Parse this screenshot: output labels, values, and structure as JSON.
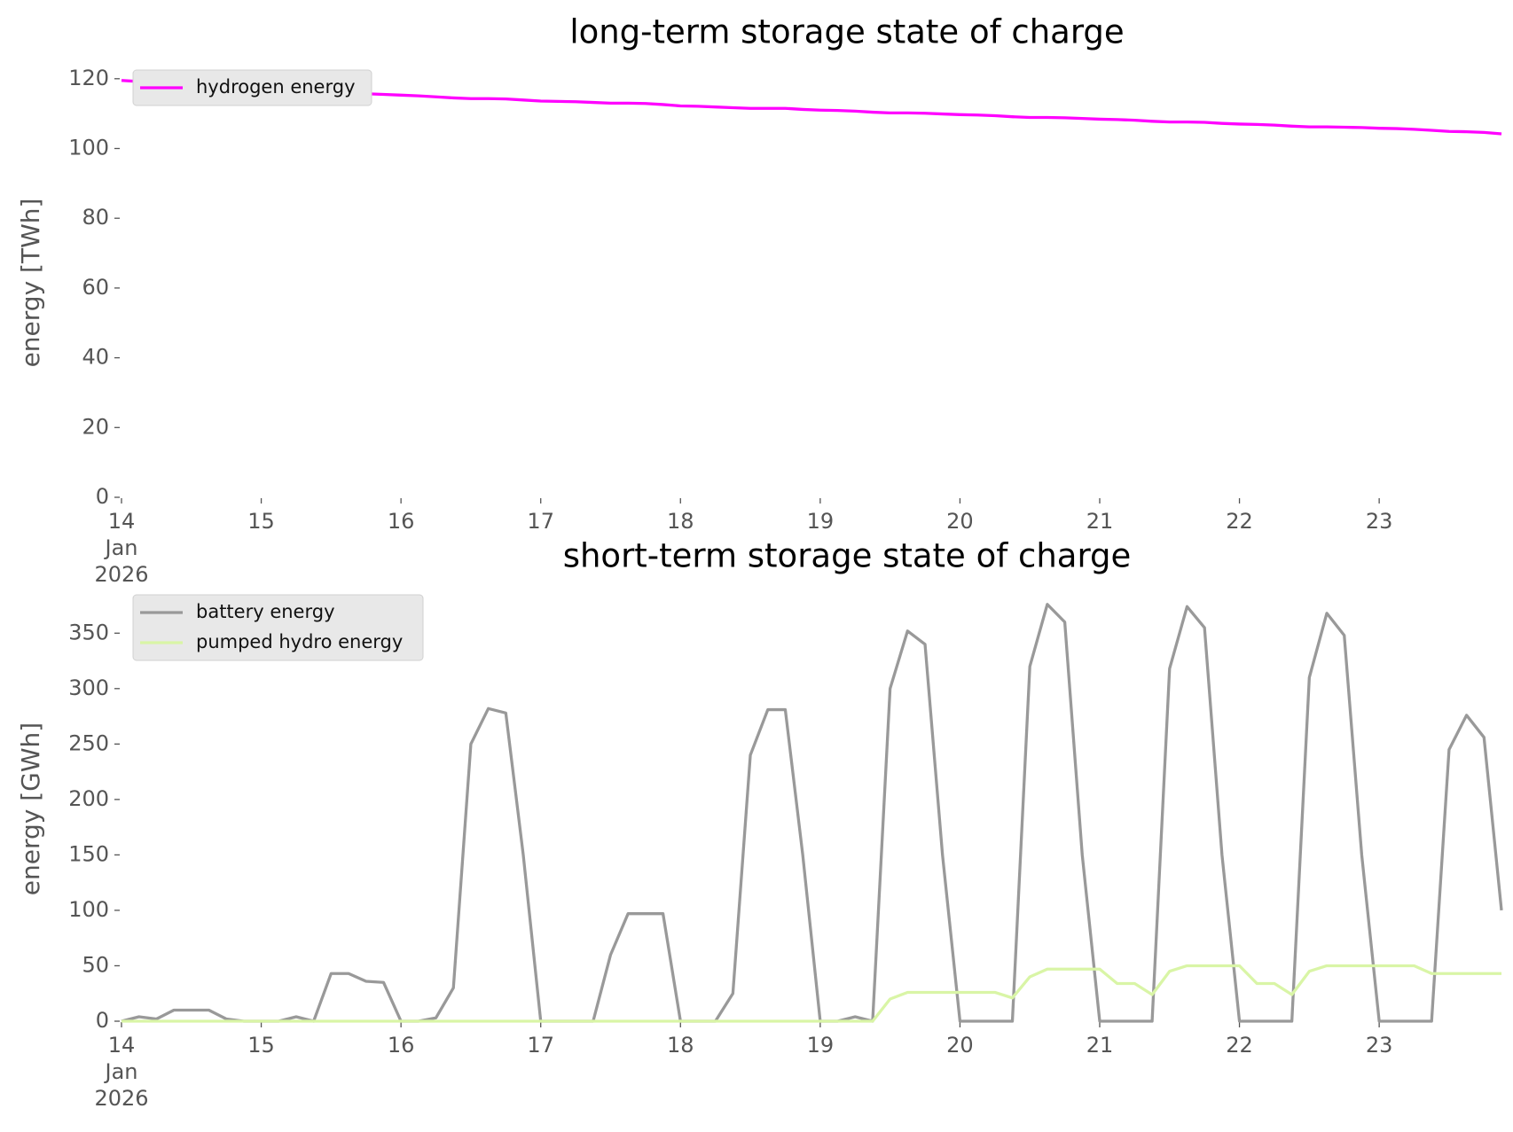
{
  "chart_data": [
    {
      "type": "line",
      "title": "long-term storage state of charge",
      "y_label": "energy [TWh]",
      "x": [
        "2026-01-14T00:00",
        "2026-01-14T03:00",
        "2026-01-14T06:00",
        "2026-01-14T09:00",
        "2026-01-14T12:00",
        "2026-01-14T15:00",
        "2026-01-14T18:00",
        "2026-01-14T21:00",
        "2026-01-15T00:00",
        "2026-01-15T03:00",
        "2026-01-15T06:00",
        "2026-01-15T09:00",
        "2026-01-15T12:00",
        "2026-01-15T15:00",
        "2026-01-15T18:00",
        "2026-01-15T21:00",
        "2026-01-16T00:00",
        "2026-01-16T03:00",
        "2026-01-16T06:00",
        "2026-01-16T09:00",
        "2026-01-16T12:00",
        "2026-01-16T15:00",
        "2026-01-16T18:00",
        "2026-01-16T21:00",
        "2026-01-17T00:00",
        "2026-01-17T03:00",
        "2026-01-17T06:00",
        "2026-01-17T09:00",
        "2026-01-17T12:00",
        "2026-01-17T15:00",
        "2026-01-17T18:00",
        "2026-01-17T21:00",
        "2026-01-18T00:00",
        "2026-01-18T03:00",
        "2026-01-18T06:00",
        "2026-01-18T09:00",
        "2026-01-18T12:00",
        "2026-01-18T15:00",
        "2026-01-18T18:00",
        "2026-01-18T21:00",
        "2026-01-19T00:00",
        "2026-01-19T03:00",
        "2026-01-19T06:00",
        "2026-01-19T09:00",
        "2026-01-19T12:00",
        "2026-01-19T15:00",
        "2026-01-19T18:00",
        "2026-01-19T21:00",
        "2026-01-20T00:00",
        "2026-01-20T03:00",
        "2026-01-20T06:00",
        "2026-01-20T09:00",
        "2026-01-20T12:00",
        "2026-01-20T15:00",
        "2026-01-20T18:00",
        "2026-01-20T21:00",
        "2026-01-21T00:00",
        "2026-01-21T03:00",
        "2026-01-21T06:00",
        "2026-01-21T09:00",
        "2026-01-21T12:00",
        "2026-01-21T15:00",
        "2026-01-21T18:00",
        "2026-01-21T21:00",
        "2026-01-22T00:00",
        "2026-01-22T03:00",
        "2026-01-22T06:00",
        "2026-01-22T09:00",
        "2026-01-22T12:00",
        "2026-01-22T15:00",
        "2026-01-22T18:00",
        "2026-01-22T21:00",
        "2026-01-23T00:00",
        "2026-01-23T03:00",
        "2026-01-23T06:00",
        "2026-01-23T09:00",
        "2026-01-23T12:00",
        "2026-01-23T15:00",
        "2026-01-23T18:00",
        "2026-01-23T21:00"
      ],
      "series": [
        {
          "name": "hydrogen energy",
          "color": "#ff00ff",
          "values": [
            119.5,
            119.2,
            118.9,
            118.6,
            118.2,
            117.9,
            117.6,
            117.3,
            117.0,
            116.8,
            116.6,
            116.4,
            116.2,
            116.0,
            115.7,
            115.5,
            115.3,
            115.1,
            114.8,
            114.5,
            114.3,
            114.3,
            114.2,
            113.9,
            113.6,
            113.5,
            113.4,
            113.2,
            113.0,
            113.0,
            112.9,
            112.6,
            112.2,
            112.1,
            111.9,
            111.7,
            111.5,
            111.5,
            111.5,
            111.2,
            111.0,
            110.9,
            110.7,
            110.4,
            110.2,
            110.2,
            110.1,
            109.9,
            109.7,
            109.6,
            109.4,
            109.1,
            108.9,
            108.9,
            108.8,
            108.6,
            108.4,
            108.3,
            108.1,
            107.8,
            107.6,
            107.6,
            107.5,
            107.2,
            107.0,
            106.9,
            106.7,
            106.4,
            106.2,
            106.2,
            106.1,
            106.0,
            105.8,
            105.7,
            105.5,
            105.2,
            104.9,
            104.8,
            104.6,
            104.2
          ]
        }
      ],
      "xlim": [
        "2026-01-14T00:00",
        "2026-01-23T21:00"
      ],
      "xticks": [
        {
          "value": "2026-01-14T00:00",
          "label": "14\nJan\n2026"
        },
        {
          "value": "2026-01-15T00:00",
          "label": "15"
        },
        {
          "value": "2026-01-16T00:00",
          "label": "16"
        },
        {
          "value": "2026-01-17T00:00",
          "label": "17"
        },
        {
          "value": "2026-01-18T00:00",
          "label": "18"
        },
        {
          "value": "2026-01-19T00:00",
          "label": "19"
        },
        {
          "value": "2026-01-20T00:00",
          "label": "20"
        },
        {
          "value": "2026-01-21T00:00",
          "label": "21"
        },
        {
          "value": "2026-01-22T00:00",
          "label": "22"
        },
        {
          "value": "2026-01-23T00:00",
          "label": "23"
        }
      ],
      "ylim": [
        0,
        123
      ],
      "yticks": [
        0,
        20,
        40,
        60,
        80,
        100,
        120
      ],
      "grid": false,
      "legend": "upper left"
    },
    {
      "type": "line",
      "title": "short-term storage state of charge",
      "y_label": "energy [GWh]",
      "x": [
        "2026-01-14T00:00",
        "2026-01-14T03:00",
        "2026-01-14T06:00",
        "2026-01-14T09:00",
        "2026-01-14T12:00",
        "2026-01-14T15:00",
        "2026-01-14T18:00",
        "2026-01-14T21:00",
        "2026-01-15T00:00",
        "2026-01-15T03:00",
        "2026-01-15T06:00",
        "2026-01-15T09:00",
        "2026-01-15T12:00",
        "2026-01-15T15:00",
        "2026-01-15T18:00",
        "2026-01-15T21:00",
        "2026-01-16T00:00",
        "2026-01-16T03:00",
        "2026-01-16T06:00",
        "2026-01-16T09:00",
        "2026-01-16T12:00",
        "2026-01-16T15:00",
        "2026-01-16T18:00",
        "2026-01-16T21:00",
        "2026-01-17T00:00",
        "2026-01-17T03:00",
        "2026-01-17T06:00",
        "2026-01-17T09:00",
        "2026-01-17T12:00",
        "2026-01-17T15:00",
        "2026-01-17T18:00",
        "2026-01-17T21:00",
        "2026-01-18T00:00",
        "2026-01-18T03:00",
        "2026-01-18T06:00",
        "2026-01-18T09:00",
        "2026-01-18T12:00",
        "2026-01-18T15:00",
        "2026-01-18T18:00",
        "2026-01-18T21:00",
        "2026-01-19T00:00",
        "2026-01-19T03:00",
        "2026-01-19T06:00",
        "2026-01-19T09:00",
        "2026-01-19T12:00",
        "2026-01-19T15:00",
        "2026-01-19T18:00",
        "2026-01-19T21:00",
        "2026-01-20T00:00",
        "2026-01-20T03:00",
        "2026-01-20T06:00",
        "2026-01-20T09:00",
        "2026-01-20T12:00",
        "2026-01-20T15:00",
        "2026-01-20T18:00",
        "2026-01-20T21:00",
        "2026-01-21T00:00",
        "2026-01-21T03:00",
        "2026-01-21T06:00",
        "2026-01-21T09:00",
        "2026-01-21T12:00",
        "2026-01-21T15:00",
        "2026-01-21T18:00",
        "2026-01-21T21:00",
        "2026-01-22T00:00",
        "2026-01-22T03:00",
        "2026-01-22T06:00",
        "2026-01-22T09:00",
        "2026-01-22T12:00",
        "2026-01-22T15:00",
        "2026-01-22T18:00",
        "2026-01-22T21:00",
        "2026-01-23T00:00",
        "2026-01-23T03:00",
        "2026-01-23T06:00",
        "2026-01-23T09:00",
        "2026-01-23T12:00",
        "2026-01-23T15:00",
        "2026-01-23T18:00",
        "2026-01-23T21:00"
      ],
      "series": [
        {
          "name": "battery energy",
          "color": "#999999",
          "values": [
            0,
            4,
            2,
            10,
            10,
            10,
            2,
            0,
            0,
            0,
            4,
            0,
            43,
            43,
            36,
            35,
            0,
            0,
            3,
            30,
            250,
            282,
            278,
            150,
            0,
            0,
            0,
            0,
            60,
            97,
            97,
            97,
            0,
            0,
            0,
            25,
            240,
            281,
            281,
            150,
            0,
            0,
            4,
            0,
            300,
            352,
            340,
            150,
            0,
            0,
            0,
            0,
            320,
            376,
            360,
            150,
            0,
            0,
            0,
            0,
            318,
            374,
            355,
            150,
            0,
            0,
            0,
            0,
            310,
            368,
            348,
            150,
            0,
            0,
            0,
            0,
            245,
            276,
            256,
            100
          ]
        },
        {
          "name": "pumped hydro energy",
          "color": "#d9f5a6",
          "values": [
            0,
            0,
            0,
            0,
            0,
            0,
            0,
            0,
            0,
            0,
            0,
            0,
            0,
            0,
            0,
            0,
            0,
            0,
            0,
            0,
            0,
            0,
            0,
            0,
            0,
            0,
            0,
            0,
            0,
            0,
            0,
            0,
            0,
            0,
            0,
            0,
            0,
            0,
            0,
            0,
            0,
            0,
            0,
            0,
            20,
            26,
            26,
            26,
            26,
            26,
            26,
            21,
            40,
            47,
            47,
            47,
            47,
            34,
            34,
            24,
            45,
            50,
            50,
            50,
            50,
            34,
            34,
            24,
            45,
            50,
            50,
            50,
            50,
            50,
            50,
            43,
            43,
            43,
            43,
            43
          ]
        }
      ],
      "xlim": [
        "2026-01-14T00:00",
        "2026-01-23T21:00"
      ],
      "xticks": [
        {
          "value": "2026-01-14T00:00",
          "label": "14\nJan\n2026"
        },
        {
          "value": "2026-01-15T00:00",
          "label": "15"
        },
        {
          "value": "2026-01-16T00:00",
          "label": "16"
        },
        {
          "value": "2026-01-17T00:00",
          "label": "17"
        },
        {
          "value": "2026-01-18T00:00",
          "label": "18"
        },
        {
          "value": "2026-01-19T00:00",
          "label": "19"
        },
        {
          "value": "2026-01-20T00:00",
          "label": "20"
        },
        {
          "value": "2026-01-21T00:00",
          "label": "21"
        },
        {
          "value": "2026-01-22T00:00",
          "label": "22"
        },
        {
          "value": "2026-01-23T00:00",
          "label": "23"
        }
      ],
      "ylim": [
        0,
        383
      ],
      "yticks": [
        0,
        50,
        100,
        150,
        200,
        250,
        300,
        350
      ],
      "grid": false,
      "legend": "upper left"
    }
  ]
}
